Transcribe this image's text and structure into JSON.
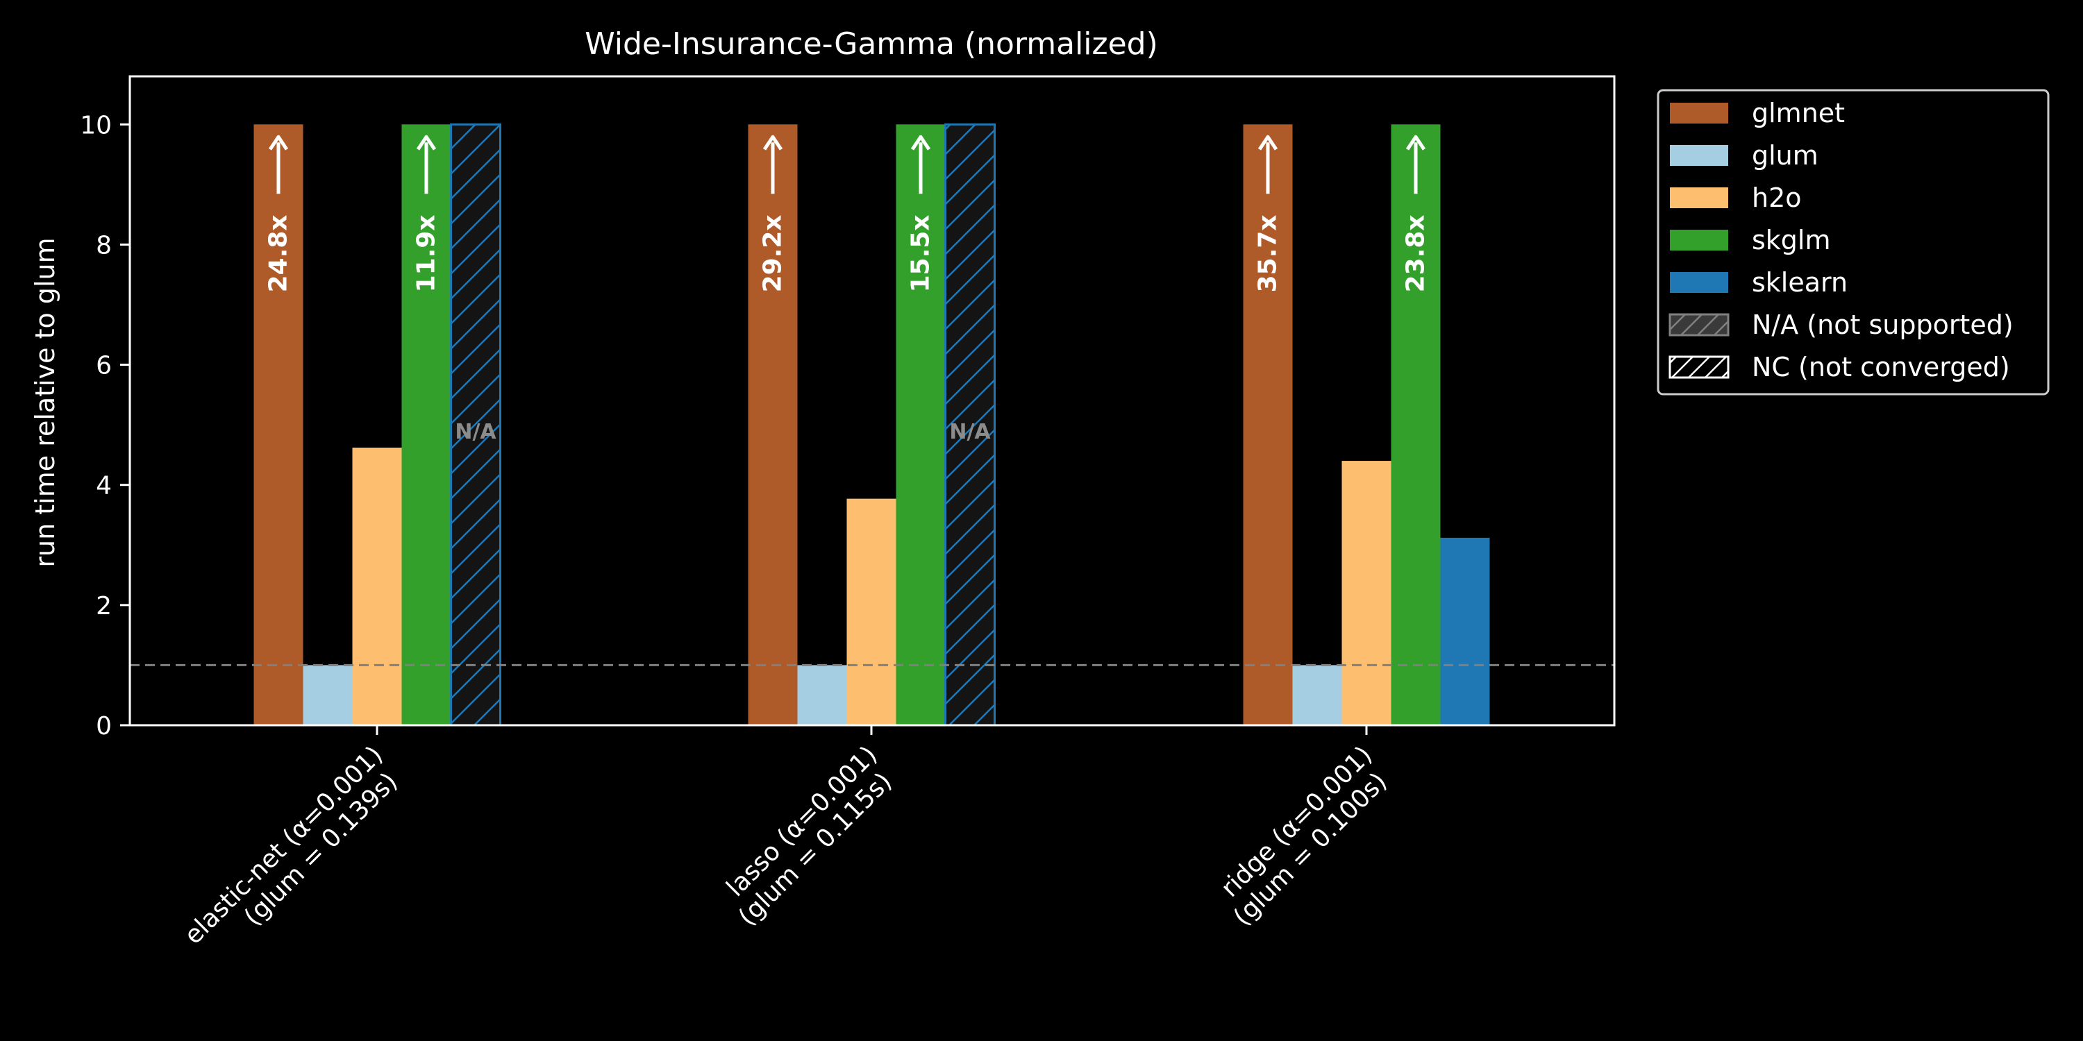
{
  "chart_data": {
    "type": "bar",
    "title": "Wide-Insurance-Gamma (normalized)",
    "xlabel": "",
    "ylabel": "run time relative to glum",
    "ylim": [
      0,
      10.8
    ],
    "yticks": [
      0,
      2,
      4,
      6,
      8,
      10
    ],
    "clip_value": 10,
    "reference_line": 1,
    "categories": [
      {
        "line1": "elastic-net (α=0.001)",
        "line2": "(glum = 0.139s)"
      },
      {
        "line1": "lasso (α=0.001)",
        "line2": "(glum = 0.115s)"
      },
      {
        "line1": "ridge (α=0.001)",
        "line2": "(glum = 0.100s)"
      }
    ],
    "series": [
      {
        "name": "glmnet",
        "color": "#ae5a29",
        "values": [
          24.8,
          29.2,
          35.7
        ],
        "labels": [
          "24.8x",
          "29.2x",
          "35.7x"
        ]
      },
      {
        "name": "glum",
        "color": "#a6cee3",
        "values": [
          1.0,
          1.0,
          1.0
        ],
        "labels": [
          "",
          "",
          ""
        ]
      },
      {
        "name": "h2o",
        "color": "#fdbf6f",
        "values": [
          4.62,
          3.77,
          4.4
        ],
        "labels": [
          "",
          "",
          ""
        ]
      },
      {
        "name": "skglm",
        "color": "#33a02c",
        "values": [
          11.9,
          15.5,
          23.8
        ],
        "labels": [
          "11.9x",
          "15.5x",
          "23.8x"
        ]
      },
      {
        "name": "sklearn",
        "color": "#1f78b4",
        "values": [
          null,
          null,
          3.12
        ],
        "status": [
          "N/A",
          "N/A",
          "ok"
        ],
        "na_label": "N/A"
      }
    ],
    "legend": {
      "placement": "outside-top-right",
      "entries": [
        {
          "label": "glmnet",
          "kind": "solid",
          "color": "#ae5a29"
        },
        {
          "label": "glum",
          "kind": "solid",
          "color": "#a6cee3"
        },
        {
          "label": "h2o",
          "kind": "solid",
          "color": "#fdbf6f"
        },
        {
          "label": "skglm",
          "kind": "solid",
          "color": "#33a02c"
        },
        {
          "label": "sklearn",
          "kind": "solid",
          "color": "#1f78b4"
        },
        {
          "label": "N/A (not supported)",
          "kind": "hatch-na",
          "color": "#808080"
        },
        {
          "label": "NC (not converged)",
          "kind": "hatch-nc",
          "color": "#ffffff"
        }
      ]
    },
    "grid": false,
    "axis_color": "#ffffff",
    "background": "#000000",
    "reference_color": "#808080"
  }
}
